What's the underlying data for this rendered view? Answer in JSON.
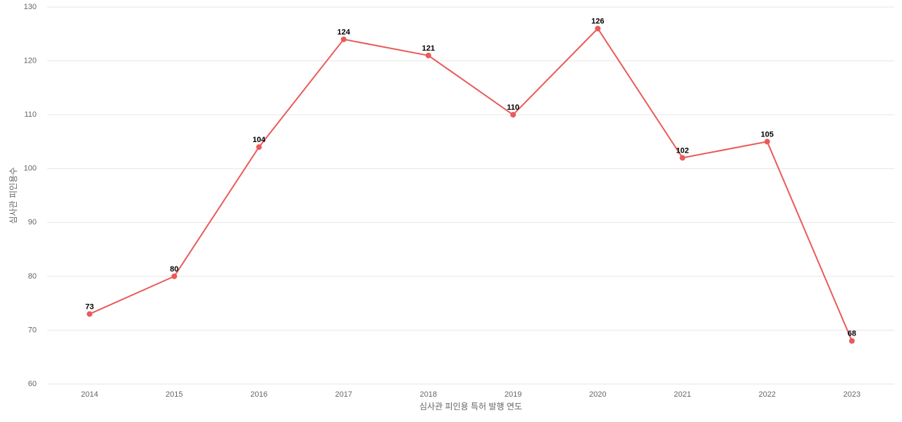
{
  "chart_data": {
    "type": "line",
    "x_label": "심사관 피인용 특허 발행 연도",
    "y_label": "심사관 피인용수",
    "categories": [
      "2014",
      "2015",
      "2016",
      "2017",
      "2018",
      "2019",
      "2020",
      "2021",
      "2022",
      "2023"
    ],
    "values": [
      73,
      80,
      104,
      124,
      121,
      110,
      126,
      102,
      105,
      68
    ],
    "color": "#ea5a5a",
    "ylim": [
      60,
      130
    ],
    "yticks": [
      60,
      70,
      80,
      90,
      100,
      110,
      120,
      130
    ],
    "grid": true
  }
}
